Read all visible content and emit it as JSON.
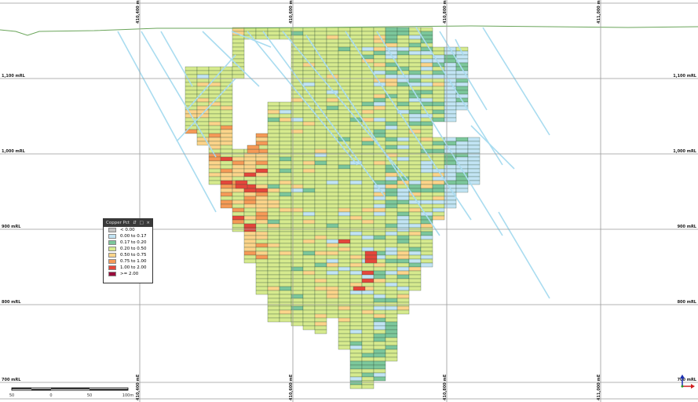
{
  "legend": {
    "title": "Copper Pct",
    "controls": {
      "pin": "⇵",
      "restore": "□",
      "close": "×"
    },
    "items": [
      {
        "label": "< 0.00",
        "color": "#c4c4c4"
      },
      {
        "label": "0.00 to 0.17",
        "color": "#c2e4f4"
      },
      {
        "label": "0.17 to 0.20",
        "color": "#7cc79b"
      },
      {
        "label": "0.20 to 0.50",
        "color": "#d6ea8e"
      },
      {
        "label": "0.50 to 0.75",
        "color": "#fcd48a"
      },
      {
        "label": "0.75 to 1.00",
        "color": "#f69a57"
      },
      {
        "label": "1.00 to 2.00",
        "color": "#e5463b"
      },
      {
        "label": ">= 2.00",
        "color": "#9a0b3b"
      }
    ]
  },
  "elevations": [
    "1,100 mRL",
    "1,000 mRL",
    "900 mRL",
    "800 mRL",
    "700 mRL"
  ],
  "eastings": [
    "410,400 mE",
    "410,600 mE",
    "410,800 mE",
    "411,000 mE"
  ],
  "scale_bar": {
    "labels": [
      "50",
      "0",
      "50",
      "100m"
    ]
  },
  "colors": {
    "grid": "#9a9a9a",
    "topography": "#6aa55a",
    "drillhole": "#a9dcf0",
    "cell_outline": "#2f4f3a"
  },
  "axis_icon": "xyz-axis-triad-icon"
}
